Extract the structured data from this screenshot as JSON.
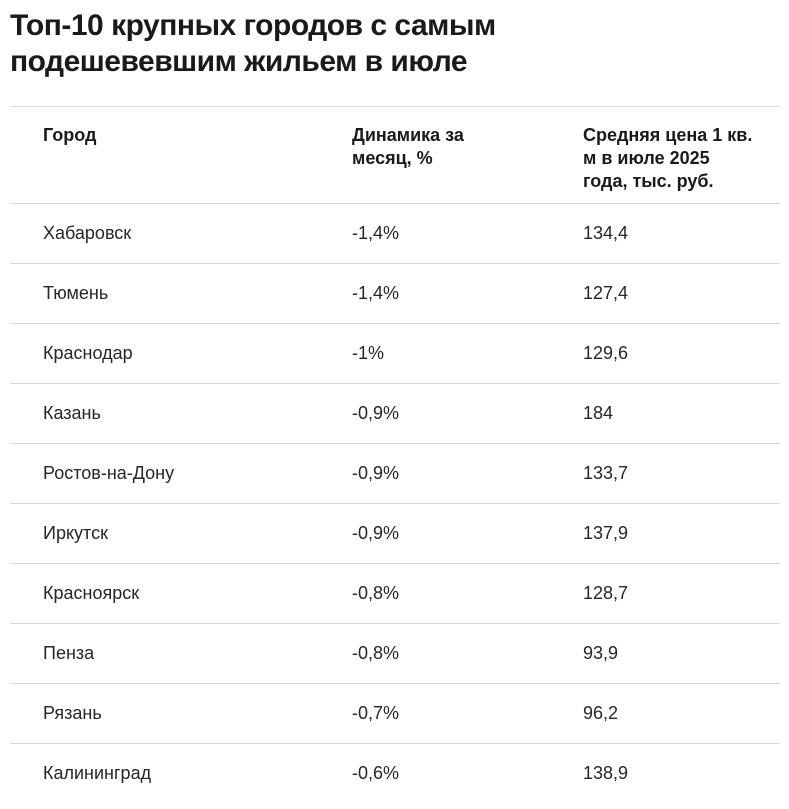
{
  "title": "Топ-10 крупных городов с самым подешевевшим жильем в июле",
  "chart_data": {
    "type": "table",
    "title": "Топ-10 крупных городов с самым подешевевшим жильем в июле",
    "columns": [
      "Город",
      "Динамика за месяц, %",
      "Средняя цена 1 кв. м в июле 2025 года, тыс. руб."
    ],
    "rows": [
      {
        "city": "Хабаровск",
        "change_display": "-1,4%",
        "change_value": -1.4,
        "price_display": "134,4",
        "price_value": 134.4
      },
      {
        "city": "Тюмень",
        "change_display": "-1,4%",
        "change_value": -1.4,
        "price_display": "127,4",
        "price_value": 127.4
      },
      {
        "city": "Краснодар",
        "change_display": "-1%",
        "change_value": -1.0,
        "price_display": "129,6",
        "price_value": 129.6
      },
      {
        "city": "Казань",
        "change_display": "-0,9%",
        "change_value": -0.9,
        "price_display": "184",
        "price_value": 184
      },
      {
        "city": "Ростов-на-Дону",
        "change_display": "-0,9%",
        "change_value": -0.9,
        "price_display": "133,7",
        "price_value": 133.7
      },
      {
        "city": "Иркутск",
        "change_display": "-0,9%",
        "change_value": -0.9,
        "price_display": "137,9",
        "price_value": 137.9
      },
      {
        "city": "Красноярск",
        "change_display": "-0,8%",
        "change_value": -0.8,
        "price_display": "128,7",
        "price_value": 128.7
      },
      {
        "city": "Пенза",
        "change_display": "-0,8%",
        "change_value": -0.8,
        "price_display": "93,9",
        "price_value": 93.9
      },
      {
        "city": "Рязань",
        "change_display": "-0,7%",
        "change_value": -0.7,
        "price_display": "96,2",
        "price_value": 96.2
      },
      {
        "city": "Калининград",
        "change_display": "-0,6%",
        "change_value": -0.6,
        "price_display": "138,9",
        "price_value": 138.9
      }
    ]
  },
  "colors": {
    "title_text": "#1a1a1a",
    "header_text": "#1a1a1a",
    "cell_text": "#262626",
    "divider": "#d9d9d9",
    "background": "#ffffff"
  }
}
